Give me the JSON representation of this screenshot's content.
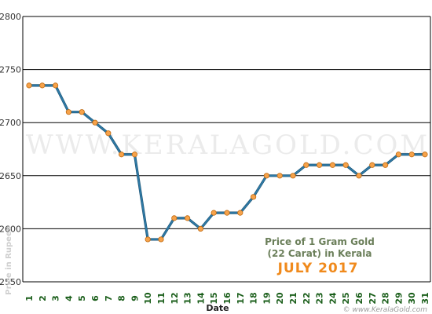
{
  "chart_data": {
    "type": "line",
    "title_lines": [
      "Price of 1 Gram Gold",
      "(22 Carat) in Kerala"
    ],
    "subtitle": "JULY 2017",
    "xlabel": "Date",
    "ylabel": "Price in Rupees",
    "watermark": "WWW.KERALAGOLD.COM",
    "credit": "© www.KeralaGold.com",
    "x": [
      1,
      2,
      3,
      4,
      5,
      6,
      7,
      8,
      9,
      10,
      11,
      12,
      13,
      14,
      15,
      16,
      17,
      18,
      19,
      20,
      21,
      22,
      23,
      24,
      25,
      26,
      27,
      28,
      29,
      30,
      31
    ],
    "y": [
      2735,
      2735,
      2735,
      2710,
      2710,
      2700,
      2690,
      2670,
      2670,
      2590,
      2590,
      2610,
      2610,
      2600,
      2615,
      2615,
      2615,
      2630,
      2650,
      2650,
      2650,
      2660,
      2660,
      2660,
      2660,
      2650,
      2660,
      2660,
      2670,
      2670,
      2670
    ],
    "ylim": [
      2550,
      2800
    ],
    "yticks": [
      2550,
      2600,
      2650,
      2700,
      2750,
      2800
    ],
    "grid": true,
    "colors": {
      "line": "#2e7aa6",
      "marker": "#f6a24a",
      "marker_edge": "#c06a10",
      "grid": "#000000"
    }
  }
}
